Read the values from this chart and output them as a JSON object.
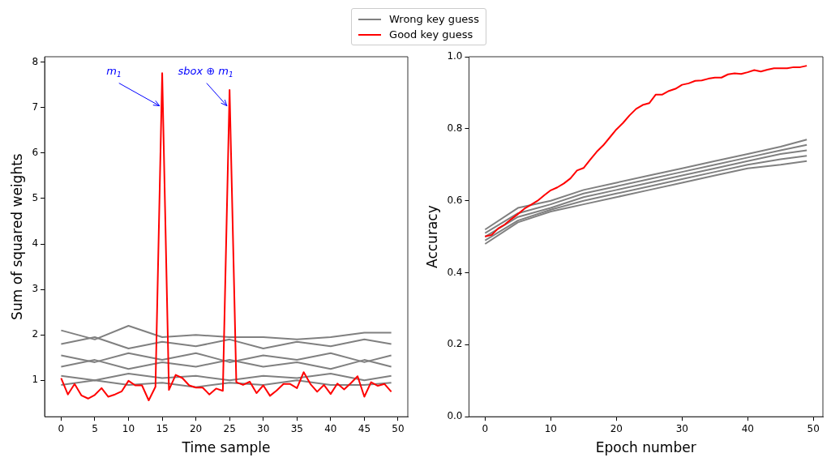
{
  "chart_data": [
    {
      "type": "line",
      "xlabel": "Time sample",
      "ylabel": "Sum of squared weights",
      "xlim": [
        -2.45,
        51.45
      ],
      "xticks": [
        0,
        5,
        10,
        15,
        20,
        25,
        30,
        35,
        40,
        45,
        50
      ],
      "ylim": [
        0.2,
        8.12
      ],
      "yticks": [
        1,
        2,
        3,
        4,
        5,
        6,
        7,
        8
      ],
      "legend": "top",
      "grid": false,
      "annotations": [
        {
          "text": "m$_{1}$",
          "x": 14.6,
          "y": 7.04
        },
        {
          "text": "sbox ⊕ m$_{1}$",
          "x": 24.6,
          "y": 7.04
        }
      ],
      "series": [
        {
          "name": "Wrong key guess",
          "color": "#808080",
          "x": [
            0,
            5,
            10,
            15,
            20,
            25,
            30,
            35,
            40,
            45,
            49
          ],
          "values": [
            2.1,
            1.9,
            2.2,
            1.95,
            2.0,
            1.95,
            1.95,
            1.9,
            1.95,
            2.05,
            2.05
          ]
        },
        {
          "color": "#808080",
          "x": [
            0,
            5,
            10,
            15,
            20,
            25,
            30,
            35,
            40,
            45,
            49
          ],
          "values": [
            1.8,
            1.95,
            1.7,
            1.85,
            1.75,
            1.9,
            1.7,
            1.85,
            1.75,
            1.9,
            1.8
          ]
        },
        {
          "color": "#808080",
          "x": [
            0,
            5,
            10,
            15,
            20,
            25,
            30,
            35,
            40,
            45,
            49
          ],
          "values": [
            1.55,
            1.4,
            1.6,
            1.45,
            1.6,
            1.4,
            1.55,
            1.45,
            1.6,
            1.4,
            1.55
          ]
        },
        {
          "color": "#808080",
          "x": [
            0,
            5,
            10,
            15,
            20,
            25,
            30,
            35,
            40,
            45,
            49
          ],
          "values": [
            1.3,
            1.45,
            1.25,
            1.4,
            1.3,
            1.45,
            1.3,
            1.4,
            1.25,
            1.45,
            1.3
          ]
        },
        {
          "color": "#808080",
          "x": [
            0,
            5,
            10,
            15,
            20,
            25,
            30,
            35,
            40,
            45,
            49
          ],
          "values": [
            1.1,
            1.0,
            1.15,
            1.05,
            1.1,
            1.0,
            1.1,
            1.05,
            1.15,
            1.0,
            1.1
          ]
        },
        {
          "color": "#808080",
          "x": [
            0,
            5,
            10,
            15,
            20,
            25,
            30,
            35,
            40,
            45,
            49
          ],
          "values": [
            0.9,
            1.0,
            0.9,
            0.95,
            0.85,
            0.95,
            0.9,
            1.0,
            0.9,
            0.9,
            0.95
          ]
        },
        {
          "name": "Good key guess",
          "color": "#ff0000",
          "x": [
            0,
            1,
            2,
            3,
            4,
            5,
            6,
            7,
            8,
            9,
            10,
            11,
            12,
            13,
            14,
            15,
            16,
            17,
            18,
            19,
            20,
            21,
            22,
            23,
            24,
            25,
            26,
            27,
            28,
            29,
            30,
            31,
            32,
            33,
            34,
            35,
            36,
            37,
            38,
            39,
            40,
            41,
            42,
            43,
            44,
            45,
            46,
            47,
            48,
            49
          ],
          "values": [
            1.05,
            0.69,
            0.92,
            0.67,
            0.6,
            0.68,
            0.83,
            0.64,
            0.69,
            0.76,
            0.99,
            0.89,
            0.89,
            0.56,
            0.86,
            7.76,
            0.79,
            1.12,
            1.05,
            0.89,
            0.84,
            0.84,
            0.69,
            0.82,
            0.77,
            7.39,
            0.96,
            0.9,
            0.97,
            0.72,
            0.89,
            0.66,
            0.78,
            0.92,
            0.92,
            0.83,
            1.18,
            0.92,
            0.75,
            0.9,
            0.7,
            0.93,
            0.8,
            0.94,
            1.09,
            0.64,
            0.96,
            0.88,
            0.92,
            0.75
          ]
        }
      ]
    },
    {
      "type": "line",
      "xlabel": "Epoch number",
      "ylabel": "Accuracy",
      "xlim": [
        -2.45,
        51.45
      ],
      "xticks": [
        0,
        10,
        20,
        30,
        40,
        50
      ],
      "ylim": [
        0,
        1
      ],
      "yticks": [
        {
          "value": 0,
          "label": "0.0"
        },
        0.2,
        0.4,
        0.6,
        0.8,
        {
          "value": 1,
          "label": "1.0"
        }
      ],
      "grid": false,
      "series": [
        {
          "color": "#808080",
          "x": [
            0,
            5,
            10,
            15,
            20,
            25,
            30,
            35,
            40,
            45,
            49
          ],
          "values": [
            0.52,
            0.58,
            0.6,
            0.63,
            0.65,
            0.67,
            0.69,
            0.71,
            0.73,
            0.75,
            0.77
          ]
        },
        {
          "color": "#808080",
          "x": [
            0,
            5,
            10,
            15,
            20,
            25,
            30,
            35,
            40,
            45,
            49
          ],
          "values": [
            0.51,
            0.565,
            0.59,
            0.62,
            0.64,
            0.66,
            0.68,
            0.7,
            0.72,
            0.74,
            0.755
          ]
        },
        {
          "color": "#808080",
          "x": [
            0,
            5,
            10,
            15,
            20,
            25,
            30,
            35,
            40,
            45,
            49
          ],
          "values": [
            0.5,
            0.555,
            0.58,
            0.61,
            0.63,
            0.65,
            0.67,
            0.69,
            0.71,
            0.73,
            0.74
          ]
        },
        {
          "color": "#808080",
          "x": [
            0,
            5,
            10,
            15,
            20,
            25,
            30,
            35,
            40,
            45,
            49
          ],
          "values": [
            0.49,
            0.545,
            0.575,
            0.6,
            0.62,
            0.64,
            0.66,
            0.68,
            0.7,
            0.715,
            0.725
          ]
        },
        {
          "color": "#808080",
          "x": [
            0,
            5,
            10,
            15,
            20,
            25,
            30,
            35,
            40,
            45,
            49
          ],
          "values": [
            0.48,
            0.54,
            0.57,
            0.59,
            0.61,
            0.63,
            0.65,
            0.67,
            0.69,
            0.7,
            0.71
          ]
        },
        {
          "color": "#ff0000",
          "x": [
            0,
            1,
            2,
            3,
            4,
            5,
            6,
            7,
            8,
            9,
            10,
            11,
            12,
            13,
            14,
            15,
            16,
            17,
            18,
            19,
            20,
            21,
            22,
            23,
            24,
            25,
            26,
            27,
            28,
            29,
            30,
            31,
            32,
            33,
            34,
            35,
            36,
            37,
            38,
            39,
            40,
            41,
            42,
            43,
            44,
            45,
            46,
            47,
            48,
            49
          ],
          "values": [
            0.501,
            0.505,
            0.523,
            0.534,
            0.549,
            0.563,
            0.578,
            0.589,
            0.6,
            0.615,
            0.629,
            0.637,
            0.648,
            0.662,
            0.684,
            0.691,
            0.714,
            0.736,
            0.754,
            0.776,
            0.798,
            0.816,
            0.837,
            0.855,
            0.866,
            0.871,
            0.895,
            0.895,
            0.905,
            0.911,
            0.922,
            0.926,
            0.933,
            0.934,
            0.939,
            0.942,
            0.942,
            0.951,
            0.954,
            0.952,
            0.957,
            0.963,
            0.959,
            0.964,
            0.968,
            0.968,
            0.968,
            0.971,
            0.971,
            0.975
          ]
        }
      ]
    }
  ]
}
